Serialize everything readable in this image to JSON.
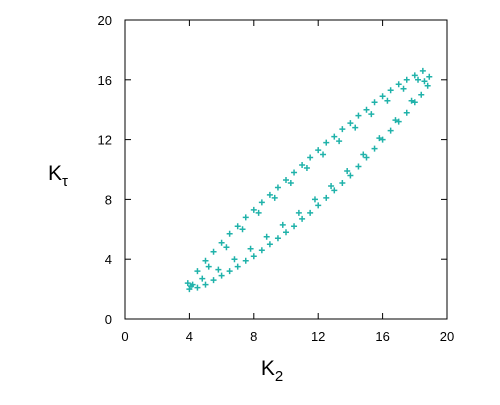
{
  "chart_data": {
    "type": "scatter",
    "xlabel": {
      "text": "K",
      "subscript": "2"
    },
    "ylabel": {
      "text": "K",
      "subscript": "τ"
    },
    "x": [
      3.9,
      4.5,
      5,
      5.5,
      6,
      6.5,
      7,
      7.5,
      8,
      8.5,
      9,
      9.5,
      10,
      10.5,
      11,
      11.5,
      12,
      12.5,
      13,
      13.5,
      14,
      14.5,
      15,
      15.5,
      16,
      16.5,
      17,
      17.5,
      18,
      18.5,
      4.2,
      5.2,
      6.3,
      7.3,
      8.3,
      9.3,
      10.3,
      11.3,
      12.3,
      13.3,
      14.3,
      15.3,
      16.3,
      17.3,
      18.2,
      18.9,
      18.8,
      18.4,
      18,
      17.5,
      17,
      16.5,
      16,
      15.5,
      15,
      14.5,
      14,
      13.5,
      13,
      12.5,
      12,
      11.5,
      11,
      10.5,
      10,
      9.5,
      9,
      8.5,
      8,
      7.5,
      7,
      6.5,
      6,
      5.5,
      5,
      4.5,
      4,
      18.6,
      17.8,
      16.8,
      15.8,
      14.8,
      13.8,
      12.8,
      11.8,
      10.8,
      9.8,
      8.8,
      7.8,
      6.8,
      5.8,
      4.8,
      4.1
    ],
    "series": [
      {
        "color": "#20b2aa",
        "values": [
          2.4,
          3.2,
          3.9,
          4.5,
          5.1,
          5.7,
          6.2,
          6.8,
          7.3,
          7.8,
          8.3,
          8.8,
          9.3,
          9.8,
          10.3,
          10.8,
          11.3,
          11.8,
          12.2,
          12.7,
          13.1,
          13.6,
          14,
          14.5,
          14.9,
          15.3,
          15.7,
          16,
          16.3,
          16.6,
          2.3,
          3.5,
          4.8,
          6,
          7.1,
          8.1,
          9.1,
          10.1,
          11,
          11.9,
          12.8,
          13.7,
          14.6,
          15.4,
          16,
          16.2,
          15.6,
          15,
          14.5,
          13.8,
          13.2,
          12.6,
          12,
          11.4,
          10.8,
          10.2,
          9.6,
          9.1,
          8.6,
          8.1,
          7.6,
          7.1,
          6.7,
          6.2,
          5.8,
          5.4,
          5,
          4.6,
          4.2,
          3.9,
          3.5,
          3.2,
          2.9,
          2.6,
          2.3,
          2.1,
          2,
          15.9,
          14.6,
          13.3,
          12.1,
          11,
          9.9,
          8.9,
          8,
          7.1,
          6.3,
          5.5,
          4.7,
          4,
          3.3,
          2.7,
          2.2
        ]
      }
    ],
    "xlim": [
      0,
      20
    ],
    "ylim": [
      0,
      20
    ],
    "xticks": [
      0,
      4,
      8,
      12,
      16,
      20
    ],
    "yticks": [
      0,
      4,
      8,
      12,
      16,
      20
    ],
    "grid": false
  }
}
